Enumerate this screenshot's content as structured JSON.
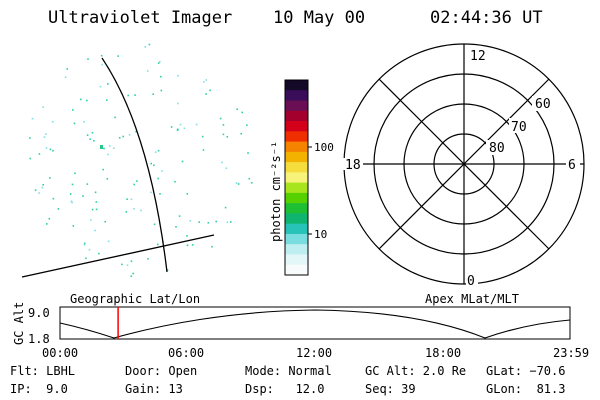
{
  "header": {
    "instrument": "Ultraviolet Imager",
    "date": "10 May 00",
    "time": "02:44:36 UT"
  },
  "colorbar": {
    "unit_label": "photon cm⁻²s⁻¹",
    "ticks": [
      "100",
      "10"
    ],
    "colors": [
      "#140a28",
      "#3a0d5a",
      "#6b0f55",
      "#a3002d",
      "#d4001a",
      "#ef2f00",
      "#f58300",
      "#f4b200",
      "#f4dd3c",
      "#f6f27a",
      "#a9e51c",
      "#55d000",
      "#1fbf33",
      "#0fb56f",
      "#27c3b8",
      "#79dde0",
      "#bfeef0",
      "#e3f7f8",
      "#f8fbfc"
    ]
  },
  "polar": {
    "mlt_labels": [
      "12",
      "18",
      "6",
      "0"
    ],
    "lat_labels": [
      "60",
      "70",
      "80"
    ]
  },
  "timeline": {
    "axis_label": "GC Alt",
    "y_ticks": [
      "9.0",
      "1.8"
    ],
    "left_title": "Geographic Lat/Lon",
    "right_title": "Apex MLat/MLT",
    "x_ticks": [
      "00:00",
      "06:00",
      "12:00",
      "18:00",
      "23:59"
    ],
    "current_time_fraction": 0.114
  },
  "info": {
    "filter": "Flt: LBHL",
    "ip": "IP:  9.0",
    "door": "Door: Open",
    "gain": "Gain: 13",
    "mode": "Mode: Normal",
    "dsp": "Dsp:   12.0",
    "gc_alt": "GC Alt: 2.0 Re",
    "seq": "Seq: 39",
    "glat": "GLat: −70.6",
    "glon": "GLon:  81.3"
  },
  "colors": {
    "speckle": "#2ecfa8",
    "marker": "#ff0000",
    "foreground": "#000000"
  }
}
